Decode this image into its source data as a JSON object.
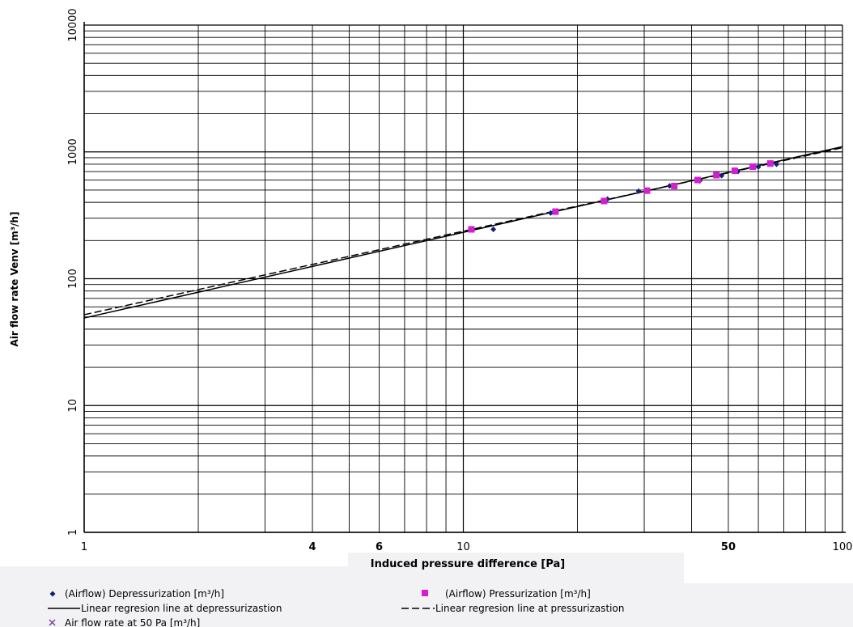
{
  "chart_data": {
    "type": "scatter",
    "xscale": "log",
    "yscale": "log",
    "xlim": [
      1,
      100
    ],
    "ylim": [
      1,
      10000
    ],
    "grid": true,
    "xlabel": "Induced pressure difference [Pa]",
    "ylabel": "Air flow rate Venv  [m³/h]",
    "x_ticks": [
      {
        "value": 1,
        "label": "1",
        "bold": false,
        "color": "#000000"
      },
      {
        "value": 4,
        "label": "4",
        "bold": true,
        "color": "#000000"
      },
      {
        "value": 6,
        "label": "6",
        "bold": true,
        "color": "#000000"
      },
      {
        "value": 10,
        "label": "10",
        "bold": false,
        "color": "#000000"
      },
      {
        "value": 50,
        "label": "50",
        "bold": true,
        "color": "#c0282d"
      },
      {
        "value": 100,
        "label": "100",
        "bold": false,
        "color": "#000000"
      }
    ],
    "y_ticks": [
      {
        "value": 1,
        "label": "1"
      },
      {
        "value": 10,
        "label": "10"
      },
      {
        "value": 100,
        "label": "100"
      },
      {
        "value": 1000,
        "label": "1000"
      },
      {
        "value": 10000,
        "label": "10000"
      }
    ],
    "series": [
      {
        "name": "(Airflow) Depressurization [m³/h]",
        "kind": "points",
        "marker": "diamond",
        "color": "#14206b",
        "x": [
          12,
          17,
          24,
          29,
          35,
          42,
          48,
          53,
          60,
          67
        ],
        "y": [
          245,
          330,
          425,
          490,
          540,
          590,
          650,
          700,
          760,
          800
        ]
      },
      {
        "name": "(Airflow) Pressurization [m³/h]",
        "kind": "points",
        "marker": "square",
        "color": "#d21fd2",
        "x": [
          10.5,
          17.5,
          23.5,
          30.5,
          36,
          41.5,
          46.5,
          52,
          58,
          64.5
        ],
        "y": [
          245,
          338,
          410,
          495,
          538,
          600,
          655,
          710,
          765,
          810
        ]
      },
      {
        "name": "Linear regresion line at depressurizastion",
        "kind": "line",
        "style": "solid",
        "color": "#000000",
        "x": [
          1,
          100
        ],
        "y": [
          49,
          1100
        ]
      },
      {
        "name": "Linear regresion line at pressurizastion",
        "kind": "line",
        "style": "dashed",
        "color": "#000000",
        "x": [
          1,
          100
        ],
        "y": [
          52,
          1080
        ]
      },
      {
        "name": "Air flow rate at 50 Pa [m³/h]",
        "kind": "points",
        "marker": "x",
        "color": "#7a3fa0",
        "x": [],
        "y": []
      }
    ]
  },
  "legend": {
    "depressurization": "(Airflow) Depressurization [m³/h]",
    "pressurization": "(Airflow) Pressurization [m³/h]",
    "reg_depress": "Linear regresion line at depressurizastion",
    "reg_press": "Linear regresion line at pressurizastion",
    "rate50": "Air flow rate at 50 Pa [m³/h]"
  }
}
